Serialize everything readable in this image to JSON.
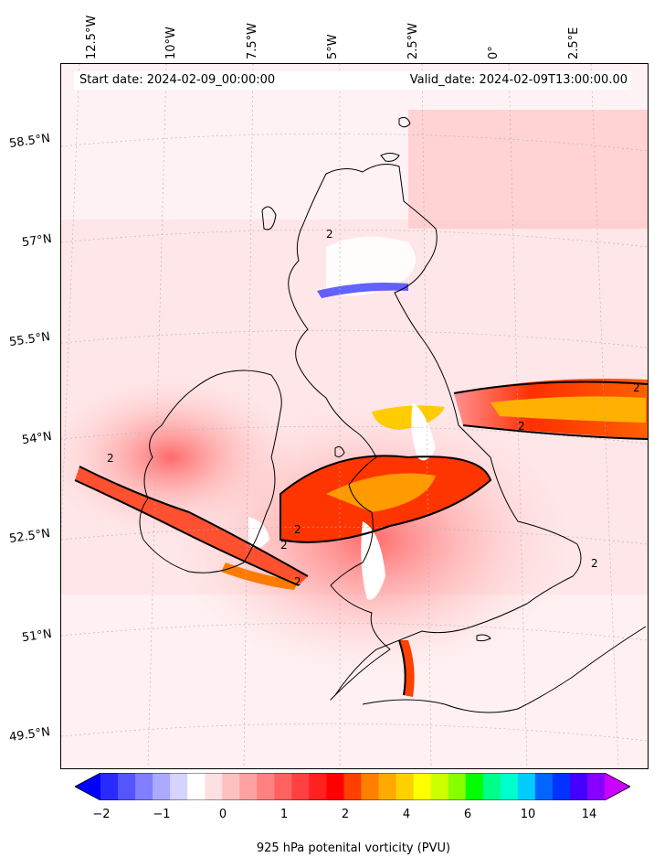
{
  "map": {
    "start_date": "Start date: 2024-02-09_00:00:00",
    "valid_date": "Valid_date: 2024-02-09T13:00:00.00",
    "lon_labels": [
      "12.5°W",
      "10°W",
      "7.5°W",
      "5°W",
      "2.5°W",
      "0°",
      "2.5°E"
    ],
    "lat_labels": [
      "58.5°N",
      "57°N",
      "55.5°N",
      "54°N",
      "52.5°N",
      "51°N",
      "49.5°N"
    ],
    "contour_label": "2"
  },
  "colorbar": {
    "label": "925 hPa potenital vorticity (PVU)",
    "ticks": [
      "−2",
      "−1",
      "0",
      "1",
      "2",
      "4",
      "6",
      "10",
      "14"
    ],
    "colors": [
      "#0000ff",
      "#2a2aff",
      "#5555ff",
      "#7f7fff",
      "#aaaaff",
      "#d4d4ff",
      "#ffffff",
      "#ffe0e0",
      "#ffc0c0",
      "#ffa0a0",
      "#ff8080",
      "#ff6060",
      "#ff4040",
      "#ff2020",
      "#ff0000",
      "#ff4000",
      "#ff8000",
      "#ffaa00",
      "#ffd000",
      "#ffff00",
      "#ccff00",
      "#88ff00",
      "#00ff00",
      "#00ff88",
      "#00ffcc",
      "#00ccff",
      "#0066ff",
      "#0033ff",
      "#4400ff",
      "#8800ff",
      "#cc00ff"
    ]
  }
}
